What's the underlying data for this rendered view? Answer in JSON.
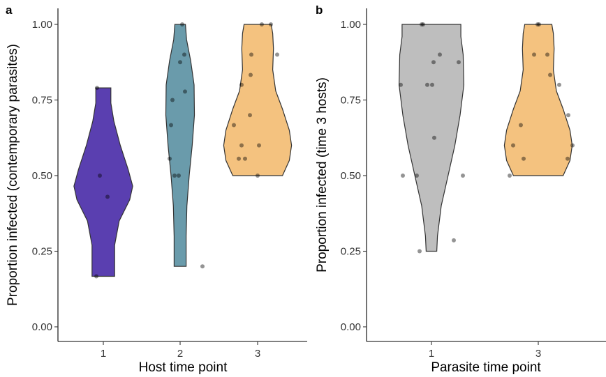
{
  "chart_data": [
    {
      "type": "violin",
      "panel_label": "a",
      "xlabel": "Host time point",
      "ylabel": "Proportion infected (contemporary parasites)",
      "ylim": [
        0,
        1
      ],
      "yticks": [
        "0.00",
        "0.25",
        "0.50",
        "0.75",
        "1.00"
      ],
      "ytick_values": [
        0,
        0.25,
        0.5,
        0.75,
        1.0
      ],
      "grid": false,
      "legend": "none",
      "groups": [
        {
          "category": "1",
          "color": "#5a3fb0",
          "min": 0.167,
          "max": 0.79,
          "profile": [
            [
              0.167,
              0.3
            ],
            [
              0.2,
              0.3
            ],
            [
              0.27,
              0.3
            ],
            [
              0.35,
              0.42
            ],
            [
              0.42,
              0.7
            ],
            [
              0.465,
              0.78
            ],
            [
              0.52,
              0.66
            ],
            [
              0.6,
              0.45
            ],
            [
              0.68,
              0.28
            ],
            [
              0.74,
              0.2
            ],
            [
              0.79,
              0.2
            ]
          ],
          "values": [
            0.167,
            0.79,
            0.5,
            0.43
          ]
        },
        {
          "category": "2",
          "color": "#6a9bab",
          "min": 0.2,
          "max": 1.0,
          "profile": [
            [
              0.2,
              0.16
            ],
            [
              0.3,
              0.16
            ],
            [
              0.4,
              0.18
            ],
            [
              0.5,
              0.24
            ],
            [
              0.6,
              0.32
            ],
            [
              0.7,
              0.38
            ],
            [
              0.8,
              0.37
            ],
            [
              0.88,
              0.28
            ],
            [
              0.95,
              0.17
            ],
            [
              1.0,
              0.14
            ]
          ],
          "values": [
            0.2,
            0.5,
            0.5,
            0.556,
            0.667,
            0.75,
            0.778,
            0.875,
            0.9,
            1.0
          ]
        },
        {
          "category": "3",
          "color": "#f4c27f",
          "min": 0.5,
          "max": 1.0,
          "profile": [
            [
              0.5,
              0.66
            ],
            [
              0.55,
              0.84
            ],
            [
              0.6,
              0.9
            ],
            [
              0.65,
              0.84
            ],
            [
              0.72,
              0.66
            ],
            [
              0.78,
              0.48
            ],
            [
              0.85,
              0.4
            ],
            [
              0.92,
              0.42
            ],
            [
              0.97,
              0.4
            ],
            [
              1.0,
              0.36
            ]
          ],
          "values": [
            0.5,
            0.556,
            0.556,
            0.6,
            0.6,
            0.667,
            0.7,
            0.8,
            0.833,
            0.9,
            0.9,
            1.0,
            1.0
          ]
        }
      ]
    },
    {
      "type": "violin",
      "panel_label": "b",
      "xlabel": "Parasite time point",
      "ylabel": "Proportion infected (time 3 hosts)",
      "ylim": [
        0,
        1
      ],
      "yticks": [
        "0.00",
        "0.25",
        "0.50",
        "0.75",
        "1.00"
      ],
      "ytick_values": [
        0,
        0.25,
        0.5,
        0.75,
        1.0
      ],
      "grid": false,
      "legend": "none",
      "groups": [
        {
          "category": "1",
          "color": "#bebebe",
          "min": 0.25,
          "max": 1.0,
          "profile": [
            [
              0.25,
              0.14
            ],
            [
              0.3,
              0.16
            ],
            [
              0.4,
              0.26
            ],
            [
              0.5,
              0.44
            ],
            [
              0.6,
              0.62
            ],
            [
              0.7,
              0.76
            ],
            [
              0.8,
              0.86
            ],
            [
              0.9,
              0.84
            ],
            [
              0.96,
              0.78
            ],
            [
              1.0,
              0.78
            ]
          ],
          "values": [
            0.25,
            0.286,
            0.5,
            0.5,
            0.5,
            0.625,
            0.8,
            0.8,
            0.8,
            0.875,
            0.875,
            0.9,
            1.0,
            1.0
          ]
        },
        {
          "category": "3",
          "color": "#f4c27f",
          "min": 0.5,
          "max": 1.0,
          "profile": [
            [
              0.5,
              0.66
            ],
            [
              0.55,
              0.84
            ],
            [
              0.6,
              0.9
            ],
            [
              0.65,
              0.84
            ],
            [
              0.72,
              0.66
            ],
            [
              0.78,
              0.48
            ],
            [
              0.85,
              0.4
            ],
            [
              0.92,
              0.42
            ],
            [
              0.97,
              0.4
            ],
            [
              1.0,
              0.36
            ]
          ],
          "values": [
            0.5,
            0.556,
            0.556,
            0.6,
            0.6,
            0.667,
            0.7,
            0.8,
            0.833,
            0.9,
            0.9,
            1.0,
            1.0
          ]
        }
      ]
    }
  ]
}
